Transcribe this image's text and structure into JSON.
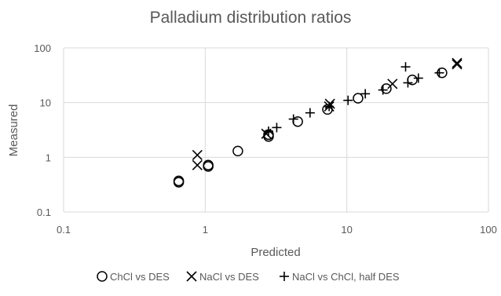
{
  "chart_data": {
    "type": "scatter",
    "title": "Palladium distribution ratios",
    "xlabel": "Predicted",
    "ylabel": "Measured",
    "x_scale": "log",
    "y_scale": "log",
    "xlim": [
      0.1,
      100
    ],
    "ylim": [
      0.1,
      100
    ],
    "x_ticks": [
      "0.1",
      "1",
      "10",
      "100"
    ],
    "y_ticks": [
      "0.1",
      "1",
      "10",
      "100"
    ],
    "grid": true,
    "legend_position": "bottom",
    "series": [
      {
        "name": "ChCl vs DES",
        "marker": "circle",
        "points": [
          {
            "x": 0.65,
            "y": 0.35
          },
          {
            "x": 0.65,
            "y": 0.37
          },
          {
            "x": 1.05,
            "y": 0.68
          },
          {
            "x": 1.05,
            "y": 0.72
          },
          {
            "x": 1.7,
            "y": 1.3
          },
          {
            "x": 2.8,
            "y": 2.4
          },
          {
            "x": 2.8,
            "y": 2.6
          },
          {
            "x": 4.5,
            "y": 4.5
          },
          {
            "x": 7.3,
            "y": 7.5
          },
          {
            "x": 12,
            "y": 12
          },
          {
            "x": 19,
            "y": 18
          },
          {
            "x": 29,
            "y": 26
          },
          {
            "x": 47,
            "y": 35
          }
        ]
      },
      {
        "name": "NaCl vs DES",
        "marker": "x",
        "points": [
          {
            "x": 0.88,
            "y": 1.1
          },
          {
            "x": 0.88,
            "y": 0.72
          },
          {
            "x": 2.7,
            "y": 2.7
          },
          {
            "x": 7.5,
            "y": 8.5
          },
          {
            "x": 7.6,
            "y": 9.5
          },
          {
            "x": 21,
            "y": 22
          },
          {
            "x": 60,
            "y": 50
          },
          {
            "x": 60,
            "y": 53
          }
        ]
      },
      {
        "name": "NaCl vs ChCl, half DES",
        "marker": "plus",
        "points": [
          {
            "x": 2.8,
            "y": 3.0
          },
          {
            "x": 3.2,
            "y": 3.5
          },
          {
            "x": 4.2,
            "y": 5.0
          },
          {
            "x": 5.5,
            "y": 6.5
          },
          {
            "x": 7.5,
            "y": 8.5
          },
          {
            "x": 10.2,
            "y": 11
          },
          {
            "x": 13.5,
            "y": 14.5
          },
          {
            "x": 18,
            "y": 17
          },
          {
            "x": 26,
            "y": 45
          },
          {
            "x": 27,
            "y": 23
          },
          {
            "x": 32,
            "y": 28
          },
          {
            "x": 45,
            "y": 35
          }
        ]
      }
    ]
  }
}
